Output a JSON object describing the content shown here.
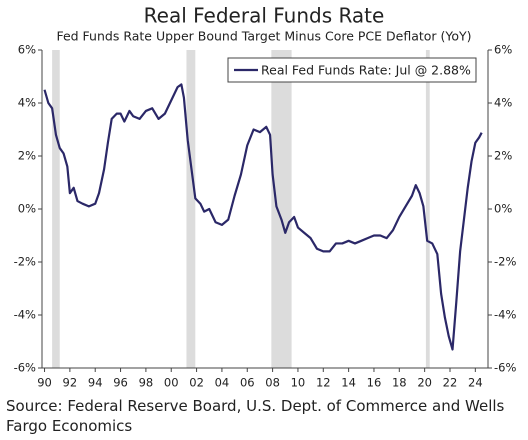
{
  "chart_data": {
    "type": "line",
    "title": "Real Federal Funds Rate",
    "subtitle": "Fed Funds Rate Upper Bound Target Minus Core PCE Deflator (YoY)",
    "source": "Source: Federal Reserve Board, U.S. Dept. of Commerce and Wells Fargo Economics",
    "x": [
      1990.0,
      1990.3,
      1990.6,
      1990.9,
      1991.2,
      1991.5,
      1991.8,
      1992.0,
      1992.3,
      1992.6,
      1993.0,
      1993.5,
      1994.0,
      1994.3,
      1994.7,
      1995.0,
      1995.3,
      1995.7,
      1996.0,
      1996.3,
      1996.7,
      1997.0,
      1997.5,
      1998.0,
      1998.5,
      1999.0,
      1999.5,
      2000.0,
      2000.5,
      2000.8,
      2001.0,
      2001.3,
      2001.6,
      2001.9,
      2002.3,
      2002.6,
      2003.0,
      2003.5,
      2004.0,
      2004.5,
      2005.0,
      2005.5,
      2006.0,
      2006.5,
      2007.0,
      2007.5,
      2007.8,
      2008.0,
      2008.3,
      2008.7,
      2009.0,
      2009.3,
      2009.7,
      2010.0,
      2010.5,
      2011.0,
      2011.5,
      2012.0,
      2012.5,
      2013.0,
      2013.5,
      2014.0,
      2014.5,
      2015.0,
      2015.5,
      2016.0,
      2016.5,
      2017.0,
      2017.5,
      2018.0,
      2018.5,
      2019.0,
      2019.3,
      2019.6,
      2019.9,
      2020.2,
      2020.6,
      2021.0,
      2021.3,
      2021.6,
      2021.9,
      2022.2,
      2022.5,
      2022.8,
      2023.1,
      2023.4,
      2023.7,
      2024.0,
      2024.3,
      2024.5
    ],
    "series": [
      {
        "name": "Real Fed Funds Rate: Jul @ 2.88%",
        "color": "#2b2868",
        "values": [
          4.5,
          4.0,
          3.8,
          2.8,
          2.3,
          2.1,
          1.6,
          0.6,
          0.8,
          0.3,
          0.2,
          0.1,
          0.2,
          0.6,
          1.5,
          2.5,
          3.4,
          3.6,
          3.6,
          3.3,
          3.7,
          3.5,
          3.4,
          3.7,
          3.8,
          3.4,
          3.6,
          4.1,
          4.6,
          4.7,
          4.2,
          2.6,
          1.5,
          0.4,
          0.2,
          -0.1,
          0.0,
          -0.5,
          -0.6,
          -0.4,
          0.5,
          1.3,
          2.4,
          3.0,
          2.9,
          3.1,
          2.8,
          1.3,
          0.1,
          -0.4,
          -0.9,
          -0.5,
          -0.3,
          -0.7,
          -0.9,
          -1.1,
          -1.5,
          -1.6,
          -1.6,
          -1.3,
          -1.3,
          -1.2,
          -1.3,
          -1.2,
          -1.1,
          -1.0,
          -1.0,
          -1.1,
          -0.8,
          -0.3,
          0.1,
          0.5,
          0.9,
          0.6,
          0.1,
          -1.2,
          -1.3,
          -1.7,
          -3.2,
          -4.1,
          -4.8,
          -5.3,
          -3.5,
          -1.6,
          -0.4,
          0.8,
          1.8,
          2.5,
          2.7,
          2.88
        ]
      }
    ],
    "recessions": [
      [
        1990.6,
        1991.2
      ],
      [
        2001.2,
        2001.9
      ],
      [
        2007.9,
        2009.5
      ],
      [
        2020.1,
        2020.4
      ]
    ],
    "recession_color": "#dcdcdc",
    "xlim": [
      1989.8,
      2025.0
    ],
    "xticks": [
      {
        "value": 1990,
        "label": "90"
      },
      {
        "value": 1992,
        "label": "92"
      },
      {
        "value": 1994,
        "label": "94"
      },
      {
        "value": 1996,
        "label": "96"
      },
      {
        "value": 1998,
        "label": "98"
      },
      {
        "value": 2000,
        "label": "00"
      },
      {
        "value": 2002,
        "label": "02"
      },
      {
        "value": 2004,
        "label": "04"
      },
      {
        "value": 2006,
        "label": "06"
      },
      {
        "value": 2008,
        "label": "08"
      },
      {
        "value": 2010,
        "label": "10"
      },
      {
        "value": 2012,
        "label": "12"
      },
      {
        "value": 2014,
        "label": "14"
      },
      {
        "value": 2016,
        "label": "16"
      },
      {
        "value": 2018,
        "label": "18"
      },
      {
        "value": 2020,
        "label": "20"
      },
      {
        "value": 2022,
        "label": "22"
      },
      {
        "value": 2024,
        "label": "24"
      }
    ],
    "ylim": [
      -6,
      6
    ],
    "yticks": [
      {
        "value": -6,
        "label": "-6%"
      },
      {
        "value": -4,
        "label": "-4%"
      },
      {
        "value": -2,
        "label": "-2%"
      },
      {
        "value": 0,
        "label": "0%"
      },
      {
        "value": 2,
        "label": "2%"
      },
      {
        "value": 4,
        "label": "4%"
      },
      {
        "value": 6,
        "label": "6%"
      }
    ],
    "grid": false,
    "legend": "upper right"
  }
}
